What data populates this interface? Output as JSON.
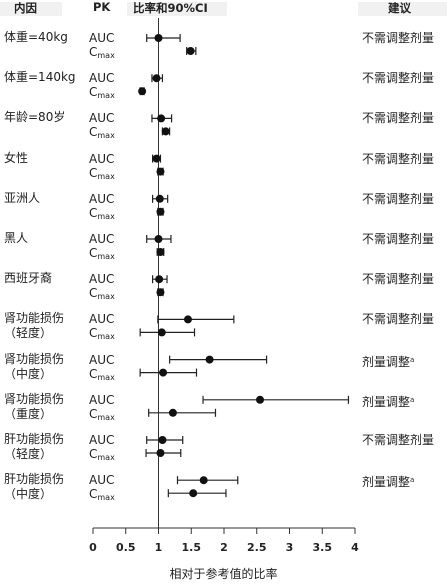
{
  "header": {
    "subgroup": "内因",
    "pk": "PK",
    "ratio": "比率和90%CI",
    "recommendation": "建议"
  },
  "pk_labels": {
    "auc": "AUC",
    "cmax_base": "C",
    "cmax_sub": "max"
  },
  "chart_data": {
    "type": "forest",
    "xlabel": "相对于参考值的比率",
    "xlim": [
      0,
      4
    ],
    "xticks": [
      0,
      0.5,
      1,
      1.5,
      2,
      2.5,
      3,
      3.5,
      4
    ],
    "xtick_labels": [
      "0",
      "0.5",
      "1",
      "1.5",
      "2",
      "2.5",
      "3",
      "3.5",
      "4"
    ],
    "reference_line": 1,
    "rows": [
      {
        "label_lines": [
          "体重=40kg"
        ],
        "recommendation": "不需调整剂量",
        "rec_sup": "",
        "auc": {
          "ratio": 1.0,
          "ci": [
            0.82,
            1.33
          ]
        },
        "cmax": {
          "ratio": 1.49,
          "ci": [
            1.43,
            1.57
          ]
        }
      },
      {
        "label_lines": [
          "体重=140kg"
        ],
        "recommendation": "不需调整剂量",
        "rec_sup": "",
        "auc": {
          "ratio": 0.97,
          "ci": [
            0.9,
            1.06
          ]
        },
        "cmax": {
          "ratio": 0.75,
          "ci": [
            0.72,
            0.78
          ]
        }
      },
      {
        "label_lines": [
          "年龄=80岁"
        ],
        "recommendation": "不需调整剂量",
        "rec_sup": "",
        "auc": {
          "ratio": 1.04,
          "ci": [
            0.9,
            1.2
          ]
        },
        "cmax": {
          "ratio": 1.11,
          "ci": [
            1.06,
            1.17
          ]
        }
      },
      {
        "label_lines": [
          "女性"
        ],
        "recommendation": "不需调整剂量",
        "rec_sup": "",
        "auc": {
          "ratio": 0.97,
          "ci": [
            0.91,
            1.03
          ]
        },
        "cmax": {
          "ratio": 1.03,
          "ci": [
            0.99,
            1.07
          ]
        }
      },
      {
        "label_lines": [
          "亚洲人"
        ],
        "recommendation": "不需调整剂量",
        "rec_sup": "",
        "auc": {
          "ratio": 1.02,
          "ci": [
            0.91,
            1.14
          ]
        },
        "cmax": {
          "ratio": 1.03,
          "ci": [
            0.99,
            1.07
          ]
        }
      },
      {
        "label_lines": [
          "黑人"
        ],
        "recommendation": "不需调整剂量",
        "rec_sup": "",
        "auc": {
          "ratio": 1.0,
          "ci": [
            0.82,
            1.19
          ]
        },
        "cmax": {
          "ratio": 1.03,
          "ci": [
            0.98,
            1.08
          ]
        }
      },
      {
        "label_lines": [
          "西班牙裔"
        ],
        "recommendation": "不需调整剂量",
        "rec_sup": "",
        "auc": {
          "ratio": 1.01,
          "ci": [
            0.91,
            1.13
          ]
        },
        "cmax": {
          "ratio": 1.03,
          "ci": [
            0.99,
            1.07
          ]
        }
      },
      {
        "label_lines": [
          "肾功能损伤",
          "（轻度）"
        ],
        "recommendation": "不需调整剂量",
        "rec_sup": "",
        "auc": {
          "ratio": 1.45,
          "ci": [
            0.99,
            2.15
          ]
        },
        "cmax": {
          "ratio": 1.05,
          "ci": [
            0.72,
            1.55
          ]
        }
      },
      {
        "label_lines": [
          "肾功能损伤",
          "（中度）"
        ],
        "recommendation": "剂量调整",
        "rec_sup": "a",
        "auc": {
          "ratio": 1.78,
          "ci": [
            1.17,
            2.65
          ]
        },
        "cmax": {
          "ratio": 1.07,
          "ci": [
            0.72,
            1.58
          ]
        }
      },
      {
        "label_lines": [
          "肾功能损伤",
          "（重度）"
        ],
        "recommendation": "剂量调整",
        "rec_sup": "a",
        "auc": {
          "ratio": 2.55,
          "ci": [
            1.68,
            3.9
          ]
        },
        "cmax": {
          "ratio": 1.22,
          "ci": [
            0.85,
            1.87
          ]
        }
      },
      {
        "label_lines": [
          "肝功能损伤",
          "（轻度）"
        ],
        "recommendation": "不需调整剂量",
        "rec_sup": "",
        "auc": {
          "ratio": 1.06,
          "ci": [
            0.82,
            1.37
          ]
        },
        "cmax": {
          "ratio": 1.03,
          "ci": [
            0.81,
            1.34
          ]
        }
      },
      {
        "label_lines": [
          "肝功能损伤",
          "（中度）"
        ],
        "recommendation": "剂量调整",
        "rec_sup": "a",
        "auc": {
          "ratio": 1.69,
          "ci": [
            1.29,
            2.21
          ]
        },
        "cmax": {
          "ratio": 1.53,
          "ci": [
            1.15,
            2.03
          ]
        }
      }
    ]
  }
}
